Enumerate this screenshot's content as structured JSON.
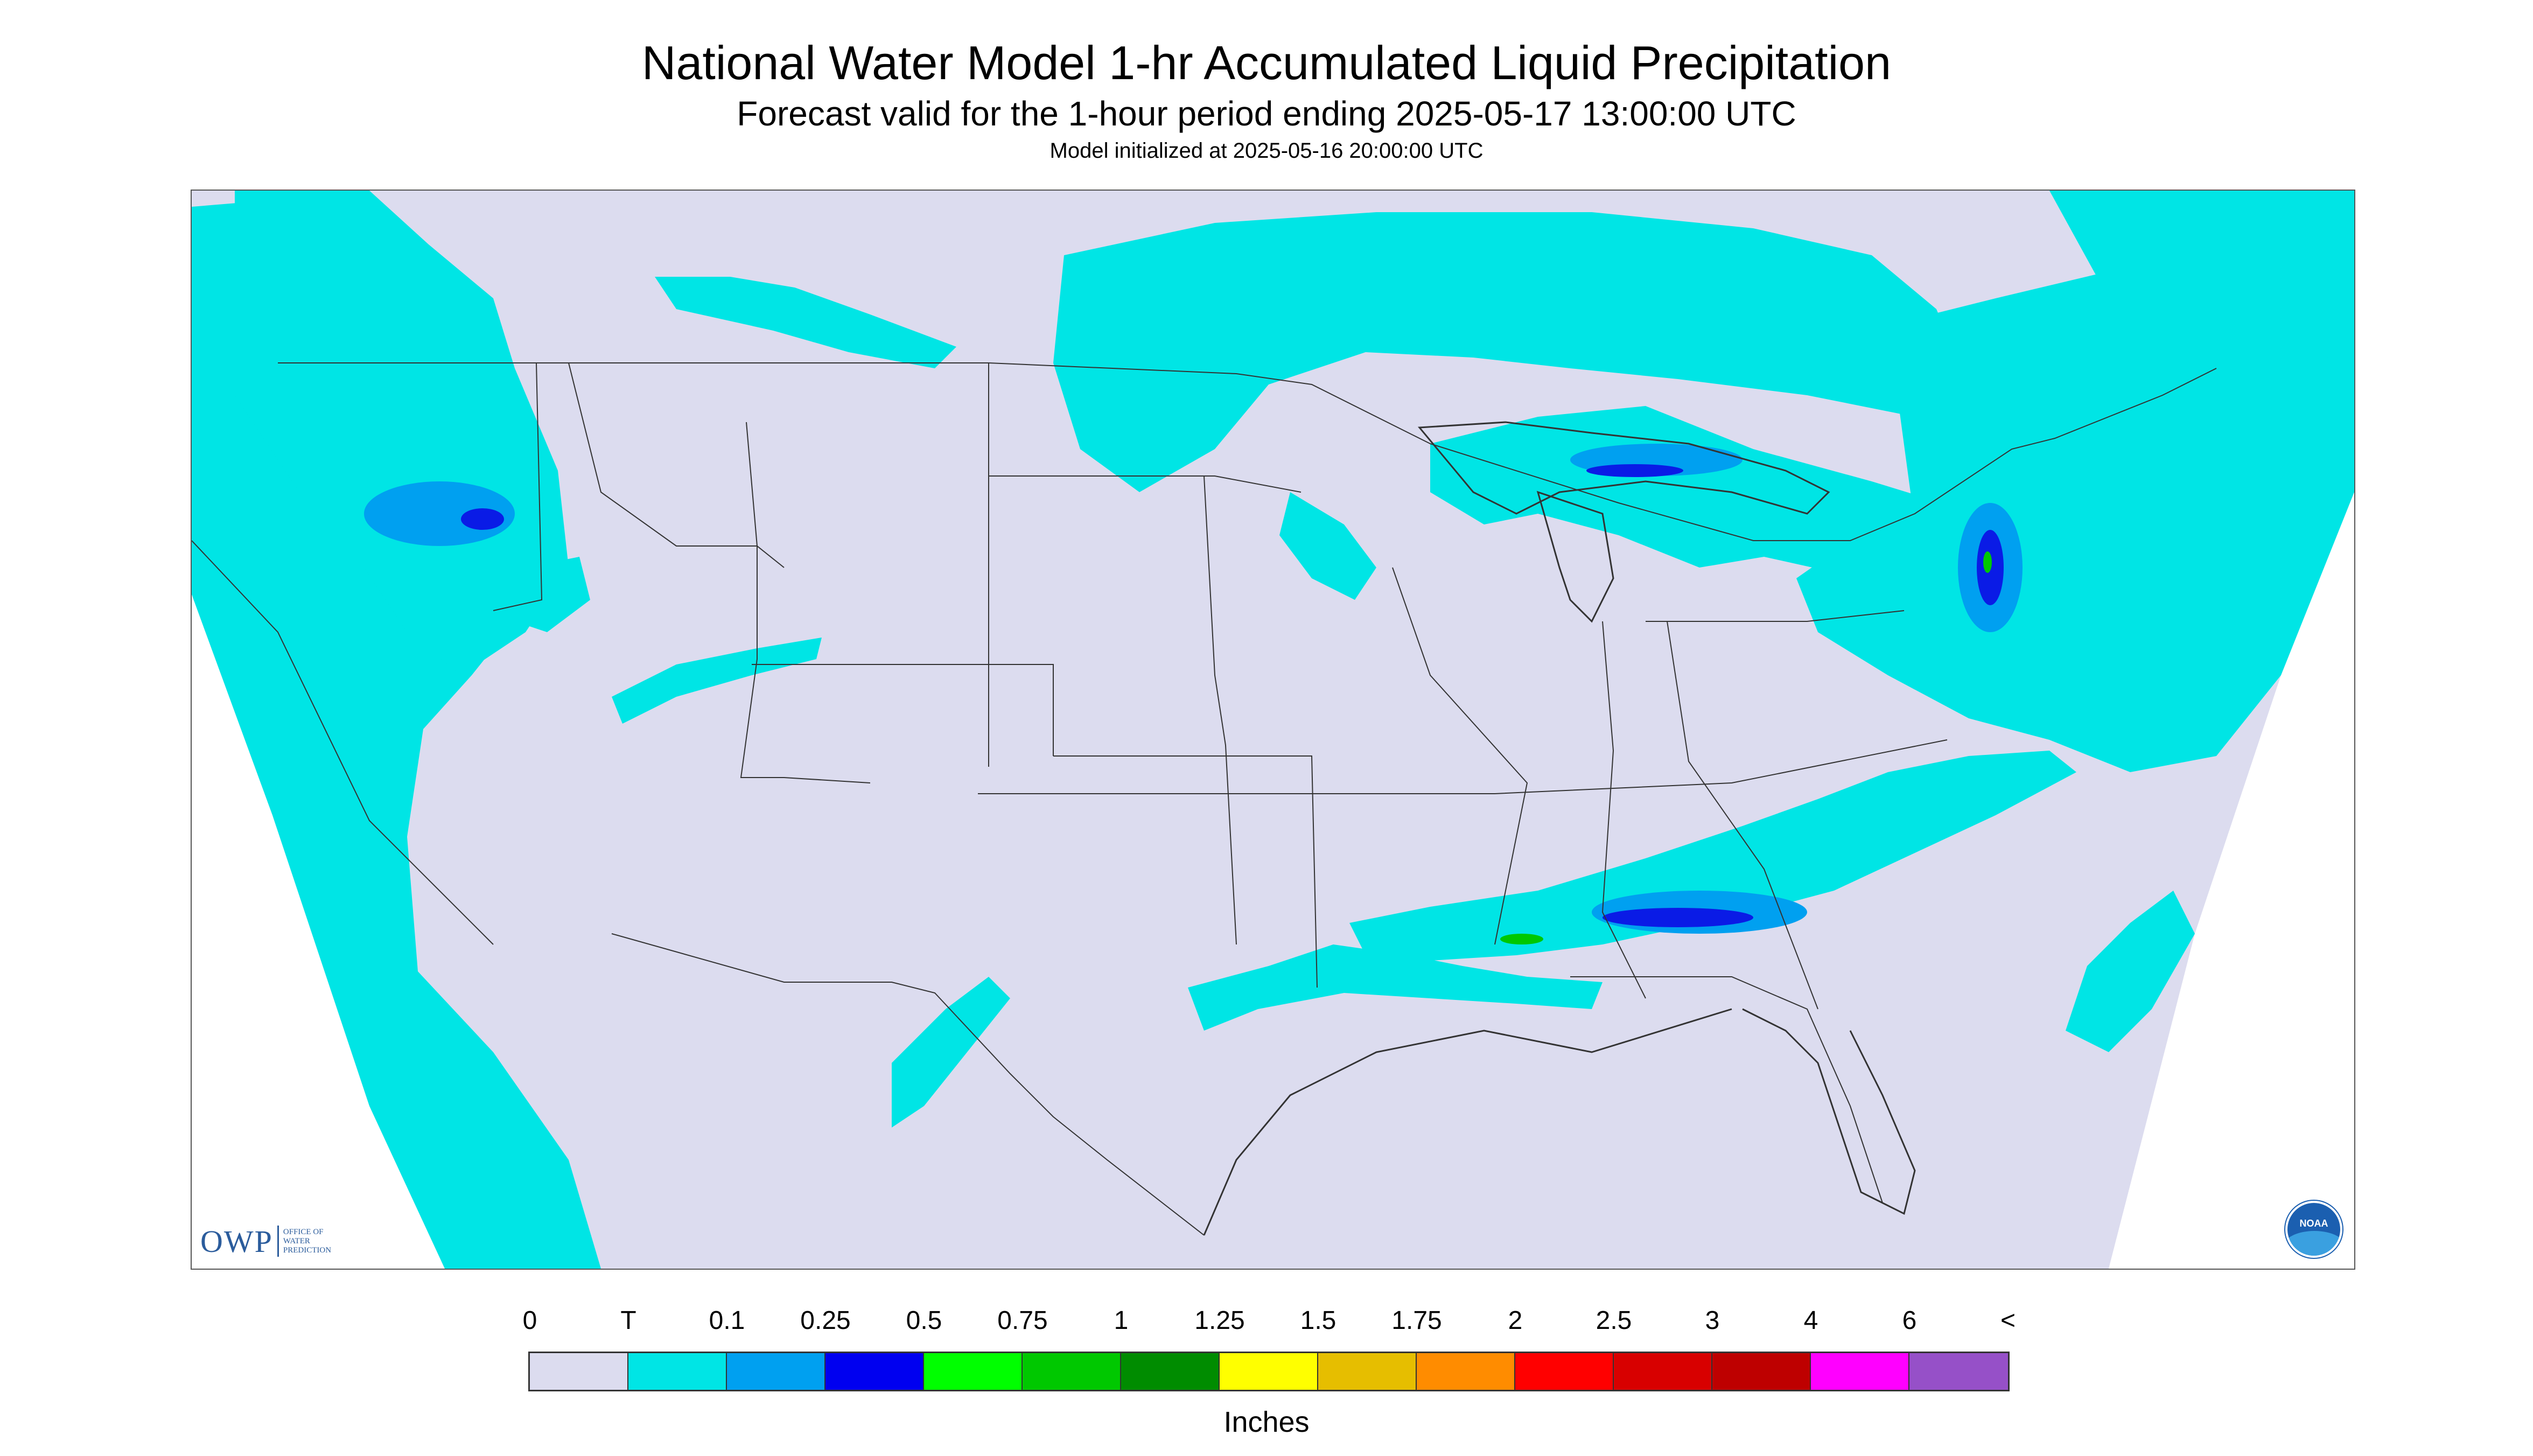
{
  "header": {
    "title": "National Water Model 1-hr Accumulated Liquid Precipitation",
    "subtitle": "Forecast valid for the 1-hour period ending 2025-05-17 13:00:00 UTC",
    "init": "Model initialized at 2025-05-16 20:00:00 UTC"
  },
  "colors": {
    "no_data": "#ffffff",
    "background": "#dcdcef",
    "trace": "#00e5e5",
    "heavy": "#0a1be6",
    "boundaries": "#333333"
  },
  "logos": {
    "owp_abbrev": "OWP",
    "owp_line1": "OFFICE OF",
    "owp_line2": "WATER",
    "owp_line3": "PREDICTION",
    "noaa": "NOAA"
  },
  "legend": {
    "labels": [
      "0",
      "T",
      "0.1",
      "0.25",
      "0.5",
      "0.75",
      "1",
      "1.25",
      "1.5",
      "1.75",
      "2",
      "2.5",
      "3",
      "4",
      "6",
      "<"
    ],
    "colors": [
      "#dcdcef",
      "#00e5e5",
      "#00a0f0",
      "#0000f0",
      "#00ff00",
      "#00c800",
      "#008c00",
      "#ffff00",
      "#e6be00",
      "#ff8c00",
      "#ff0000",
      "#d80000",
      "#be0000",
      "#ff00ff",
      "#9650c8"
    ],
    "units": "Inches"
  }
}
